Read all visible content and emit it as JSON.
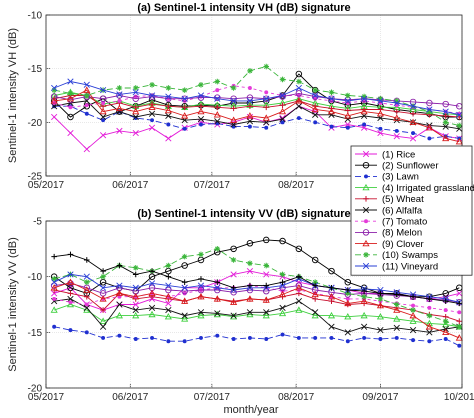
{
  "chart_data": [
    {
      "type": "line",
      "title": "(a) Sentinel-1 intensity VH (dB) signature",
      "ylabel": "Sentinel-1 intensity VH (dB)",
      "xlabel": "",
      "ylim": [
        -25,
        -10
      ],
      "yticks": [
        -25,
        -20,
        -15,
        -10
      ],
      "xlim": [
        "2017-05-01",
        "2017-10-01"
      ],
      "xticks": [
        "05/2017",
        "06/2017",
        "07/2017",
        "08/2017",
        "09/2017",
        "10/2017"
      ],
      "grid": true,
      "x": [
        "2017-05-04",
        "2017-05-10",
        "2017-05-16",
        "2017-05-22",
        "2017-05-28",
        "2017-06-03",
        "2017-06-09",
        "2017-06-15",
        "2017-06-21",
        "2017-06-27",
        "2017-07-03",
        "2017-07-09",
        "2017-07-15",
        "2017-07-21",
        "2017-07-27",
        "2017-08-02",
        "2017-08-08",
        "2017-08-14",
        "2017-08-20",
        "2017-08-26",
        "2017-09-01",
        "2017-09-07",
        "2017-09-13",
        "2017-09-19",
        "2017-09-25",
        "2017-09-30"
      ],
      "series": [
        {
          "name": "(1) Rice",
          "color": "#e31ad8",
          "marker": "x",
          "dash": "",
          "values": [
            -19.5,
            -21,
            -22.5,
            -21.2,
            -20.8,
            -21,
            -20.5,
            -21.5,
            -20.5,
            -20,
            -20.2,
            -20,
            -19.5,
            -20,
            -19.6,
            -18.5,
            -19,
            -20.5,
            -20.2,
            -20.5,
            -21,
            -21.3,
            -21.5,
            -20.5,
            -21.3,
            -21.5
          ]
        },
        {
          "name": "(2) Sunflower",
          "color": "#000000",
          "marker": "o",
          "dash": "",
          "values": [
            -18,
            -19.5,
            -18.5,
            -17.8,
            -19,
            -18.5,
            -17.9,
            -18.4,
            -18.5,
            -18.4,
            -18.5,
            -18.2,
            -18.2,
            -18,
            -17.5,
            -15.5,
            -17,
            -18,
            -18.4,
            -18.2,
            -18.5,
            -18.8,
            -19,
            -19.2,
            -19.5,
            -19.5
          ]
        },
        {
          "name": "(3) Lawn",
          "color": "#1f2fd0",
          "marker": "dot",
          "dash": "6,3",
          "values": [
            -18.5,
            -18.5,
            -19.2,
            -19.8,
            -19,
            -19.6,
            -19.8,
            -20.2,
            -20.6,
            -20.2,
            -20.1,
            -20.4,
            -20.4,
            -20.5,
            -20,
            -19.6,
            -20,
            -20.4,
            -20.5,
            -20.2,
            -20.6,
            -20.8,
            -21,
            -21.5,
            -21.3,
            -21.5
          ]
        },
        {
          "name": "(4) Irrigated grassland",
          "color": "#3ecf3e",
          "marker": "tri",
          "dash": "",
          "values": [
            -17.5,
            -17.2,
            -17.5,
            -18.3,
            -18,
            -18.5,
            -18.2,
            -18.5,
            -18.6,
            -18.3,
            -18.4,
            -18.5,
            -18.4,
            -18.4,
            -18.2,
            -17.8,
            -18.2,
            -18.5,
            -18.7,
            -18.5,
            -18.6,
            -18.6,
            -18.8,
            -19,
            -19.2,
            -19.3
          ]
        },
        {
          "name": "(5) Wheat",
          "color": "#c8102e",
          "marker": "plus",
          "dash": "",
          "values": [
            -17.8,
            -17.5,
            -17.5,
            -18.5,
            -18.2,
            -18.6,
            -18.3,
            -18.5,
            -18.6,
            -18.5,
            -18.6,
            -18.7,
            -18.5,
            -18.6,
            -18.4,
            -18,
            -18.5,
            -18.7,
            -18.9,
            -18.8,
            -18.8,
            -19,
            -19.2,
            -19.3,
            -19.4,
            -19.5
          ]
        },
        {
          "name": "(6) Alfalfa",
          "color": "#111111",
          "marker": "x",
          "dash": "",
          "values": [
            -18.5,
            -18.2,
            -18,
            -19.5,
            -19,
            -19.5,
            -19.2,
            -19.4,
            -19.8,
            -19.7,
            -19.9,
            -20.2,
            -19.9,
            -20,
            -19.7,
            -18.5,
            -19.3,
            -19.3,
            -19.7,
            -19.4,
            -19.6,
            -19.8,
            -20,
            -20.3,
            -20.4,
            -20.6
          ]
        },
        {
          "name": "(7) Tomato",
          "color": "#e53bd9",
          "marker": "dot",
          "dash": "3,3",
          "values": [
            -18.2,
            -18.6,
            -18.4,
            -18.2,
            -18,
            -17.6,
            -17.5,
            -17.8,
            -18,
            -17.6,
            -17,
            -16.6,
            -16.8,
            -17.2,
            -17.5,
            -17.5,
            -17.8,
            -18,
            -18.2,
            -18,
            -18.2,
            -18.4,
            -18.6,
            -18.8,
            -19,
            -19.2
          ]
        },
        {
          "name": "(8) Melon",
          "color": "#8b1fa9",
          "marker": "o",
          "dash": "",
          "values": [
            -17.6,
            -17.9,
            -17.6,
            -17.8,
            -17.5,
            -17.8,
            -17.6,
            -17.8,
            -17.8,
            -17.7,
            -17.7,
            -17.8,
            -17.7,
            -17.8,
            -17.6,
            -17.3,
            -17.6,
            -17.8,
            -17.9,
            -17.8,
            -17.9,
            -18,
            -18.1,
            -18.2,
            -18.3,
            -18.5
          ]
        },
        {
          "name": "(9) Clover",
          "color": "#d81b1b",
          "marker": "tri",
          "dash": "",
          "values": [
            -18,
            -17.8,
            -17,
            -19,
            -18.7,
            -19,
            -18.6,
            -18.9,
            -19.4,
            -19,
            -19.3,
            -19.8,
            -19.4,
            -19.6,
            -19,
            -18,
            -18.8,
            -19,
            -19.4,
            -19,
            -19.2,
            -19.6,
            -20,
            -20.5,
            -21.5,
            -21.8
          ]
        },
        {
          "name": "(10) Swamps",
          "color": "#3ab53a",
          "marker": "star",
          "dash": "6,3",
          "values": [
            -17,
            -17.3,
            -17.5,
            -17,
            -16.8,
            -16.8,
            -16.5,
            -16.8,
            -17,
            -16.5,
            -16.2,
            -16.8,
            -15.2,
            -14.8,
            -16,
            -16.2,
            -17,
            -17.2,
            -17.5,
            -17.6,
            -17.8,
            -18,
            -18.5,
            -19,
            -20,
            -20.3
          ]
        },
        {
          "name": "(11) Vineyard",
          "color": "#2a3fd6",
          "marker": "x",
          "dash": "",
          "values": [
            -16.8,
            -16.2,
            -16.5,
            -17,
            -17.4,
            -17.2,
            -17.5,
            -17.6,
            -17.8,
            -17.5,
            -17.8,
            -18,
            -18,
            -17.8,
            -17.5,
            -16.8,
            -17.5,
            -17.8,
            -18,
            -17.8,
            -18,
            -18.2,
            -18.5,
            -18.8,
            -19,
            -19.3
          ]
        }
      ]
    },
    {
      "type": "line",
      "title": "(b) Sentinel-1 intensity VV (dB) signature",
      "ylabel": "Sentinel-1 intensity VV (dB)",
      "xlabel": "month/year",
      "ylim": [
        -20,
        -5
      ],
      "yticks": [
        -20,
        -15,
        -10,
        -5
      ],
      "xlim": [
        "2017-05-01",
        "2017-10-01"
      ],
      "xticks": [
        "05/2017",
        "06/2017",
        "07/2017",
        "08/2017",
        "09/2017",
        "10/2017"
      ],
      "grid": true,
      "x": [
        "2017-05-04",
        "2017-05-10",
        "2017-05-16",
        "2017-05-22",
        "2017-05-28",
        "2017-06-03",
        "2017-06-09",
        "2017-06-15",
        "2017-06-21",
        "2017-06-27",
        "2017-07-03",
        "2017-07-09",
        "2017-07-15",
        "2017-07-21",
        "2017-07-27",
        "2017-08-02",
        "2017-08-08",
        "2017-08-14",
        "2017-08-20",
        "2017-08-26",
        "2017-09-01",
        "2017-09-07",
        "2017-09-13",
        "2017-09-19",
        "2017-09-25",
        "2017-09-30"
      ],
      "series": [
        {
          "name": "(1) Rice",
          "color": "#e31ad8",
          "marker": "x",
          "dash": "",
          "values": [
            -11.5,
            -11,
            -12.5,
            -13,
            -12.5,
            -12.5,
            -12,
            -12.4,
            -11,
            -11,
            -10.5,
            -9.8,
            -9.5,
            -9.8,
            -10,
            -10.5,
            -10.8,
            -11,
            -11.2,
            -11.5,
            -11.5,
            -11.5,
            -11.8,
            -12,
            -11.8,
            -11.5
          ]
        },
        {
          "name": "(2) Sunflower",
          "color": "#000000",
          "marker": "o",
          "dash": "",
          "values": [
            -10,
            -11,
            -11.5,
            -10.5,
            -11,
            -11.3,
            -10,
            -9.5,
            -9,
            -8.5,
            -7.8,
            -7.5,
            -7,
            -6.7,
            -6.8,
            -7.5,
            -8.5,
            -9.5,
            -10.5,
            -11,
            -11.5,
            -11.5,
            -11.8,
            -11.8,
            -11.5,
            -11
          ]
        },
        {
          "name": "(3) Lawn",
          "color": "#1f2fd0",
          "marker": "dot",
          "dash": "6,3",
          "values": [
            -14.5,
            -14.8,
            -15,
            -15.5,
            -15.3,
            -15.6,
            -15.5,
            -15.8,
            -15.8,
            -15.5,
            -15.3,
            -15.6,
            -15.5,
            -15.6,
            -15.2,
            -15.5,
            -15.5,
            -15.5,
            -15.8,
            -15.5,
            -15.6,
            -15.5,
            -15.7,
            -15.8,
            -15.6,
            -16.2
          ]
        },
        {
          "name": "(4) Irrigated grassland",
          "color": "#3ecf3e",
          "marker": "tri",
          "dash": "",
          "values": [
            -13,
            -12.5,
            -13,
            -14,
            -13.5,
            -13.5,
            -13.4,
            -13.6,
            -13.8,
            -13.5,
            -13.4,
            -13.6,
            -13.4,
            -13.5,
            -13.3,
            -13,
            -13.5,
            -13.5,
            -13.6,
            -13.5,
            -13.6,
            -13.8,
            -14,
            -14.2,
            -14.3,
            -14.5
          ]
        },
        {
          "name": "(5) Wheat",
          "color": "#c8102e",
          "marker": "plus",
          "dash": "",
          "values": [
            -11.2,
            -11.5,
            -11.8,
            -13,
            -11.5,
            -12,
            -11.8,
            -12,
            -12.2,
            -11.8,
            -12,
            -12.2,
            -12,
            -12.1,
            -11.8,
            -11.5,
            -12,
            -12.2,
            -12.5,
            -12.4,
            -12.6,
            -12.8,
            -13,
            -13.4,
            -13.6,
            -14
          ]
        },
        {
          "name": "(6) Alfalfa",
          "color": "#111111",
          "marker": "x",
          "dash": "",
          "values": [
            -12.2,
            -12,
            -12.8,
            -14.5,
            -12.5,
            -13,
            -12.8,
            -13,
            -13.5,
            -13.2,
            -13.3,
            -13.5,
            -13.2,
            -13.2,
            -12.8,
            -12.2,
            -13.2,
            -14.5,
            -15,
            -14.5,
            -14.8,
            -14.6,
            -14.8,
            -15,
            -14.7,
            -14.5
          ]
        },
        {
          "name": "(7) Tomato",
          "color": "#e53bd9",
          "marker": "dot",
          "dash": "3,3",
          "values": [
            -12,
            -12.3,
            -12.5,
            -12,
            -11.8,
            -11.8,
            -11.5,
            -11.8,
            -11.5,
            -11.2,
            -11,
            -11,
            -10.8,
            -11,
            -11.3,
            -11.2,
            -11.5,
            -11.8,
            -12,
            -12,
            -12.2,
            -12.4,
            -12.6,
            -12.8,
            -13,
            -13.2
          ]
        },
        {
          "name": "(8) Melon",
          "color": "#8b1fa9",
          "marker": "o",
          "dash": "",
          "values": [
            -10.8,
            -10.6,
            -11,
            -11.5,
            -11,
            -11.3,
            -11,
            -11.2,
            -11.3,
            -11.2,
            -11.2,
            -11.4,
            -11.2,
            -11.3,
            -11,
            -10.8,
            -11.2,
            -11.4,
            -11.6,
            -11.5,
            -11.6,
            -11.7,
            -11.8,
            -12,
            -12.1,
            -12.3
          ]
        },
        {
          "name": "(9) Clover",
          "color": "#d81b1b",
          "marker": "tri",
          "dash": "",
          "values": [
            -11,
            -10.5,
            -11.2,
            -12,
            -11.5,
            -11.8,
            -11.5,
            -11.8,
            -12.2,
            -11.8,
            -12,
            -12.3,
            -12,
            -12.1,
            -11.6,
            -11,
            -11.6,
            -11.8,
            -12.4,
            -12.2,
            -12.6,
            -13,
            -13.5,
            -14.5,
            -15,
            -15.5
          ]
        },
        {
          "name": "(10) Swamps",
          "color": "#3ab53a",
          "marker": "star",
          "dash": "6,3",
          "values": [
            -10.2,
            -9.8,
            -10.5,
            -10,
            -9,
            -9.2,
            -9.5,
            -9,
            -8.2,
            -8,
            -7.5,
            -8.5,
            -8.8,
            -9,
            -9.8,
            -10,
            -10.5,
            -11,
            -11.5,
            -11.8,
            -12,
            -12.5,
            -13,
            -13.5,
            -14,
            -14.5
          ]
        },
        {
          "name": "(11) Vineyard",
          "color": "#2a3fd6",
          "marker": "x",
          "dash": "",
          "values": [
            -10.5,
            -9.8,
            -10,
            -11,
            -10.8,
            -11,
            -10.6,
            -10.8,
            -11,
            -10.8,
            -11,
            -11.2,
            -11,
            -11,
            -10.8,
            -10.2,
            -10.8,
            -11,
            -11.2,
            -11.1,
            -11.2,
            -11.4,
            -11.6,
            -11.8,
            -12,
            -12.3
          ]
        },
        {
          "name": "",
          "color": "#000000",
          "marker": "plus",
          "dash": "",
          "values": [
            -8.2,
            -8,
            -8.5,
            -9.5,
            -9,
            -9.8,
            -9.5,
            -10,
            -10.5,
            -10.2,
            -10.5,
            -11,
            -10.8,
            -10.8,
            -10.5,
            -10,
            -10.8,
            -11,
            -11.2,
            -11.3,
            -11.5,
            -11.6,
            -11.8,
            -12,
            -12.2,
            -12.4
          ]
        }
      ]
    }
  ],
  "legend": {
    "placement": "right",
    "entries": [
      {
        "label": "(1) Rice",
        "color": "#e31ad8",
        "marker": "x",
        "dash": ""
      },
      {
        "label": "(2) Sunflower",
        "color": "#000000",
        "marker": "o",
        "dash": ""
      },
      {
        "label": "(3) Lawn",
        "color": "#1f2fd0",
        "marker": "dot",
        "dash": "6,3"
      },
      {
        "label": "(4) Irrigated grassland",
        "color": "#3ecf3e",
        "marker": "tri",
        "dash": ""
      },
      {
        "label": "(5) Wheat",
        "color": "#c8102e",
        "marker": "plus",
        "dash": ""
      },
      {
        "label": "(6) Alfalfa",
        "color": "#111111",
        "marker": "x",
        "dash": ""
      },
      {
        "label": "(7) Tomato",
        "color": "#e53bd9",
        "marker": "dot",
        "dash": "3,3"
      },
      {
        "label": "(8) Melon",
        "color": "#8b1fa9",
        "marker": "o",
        "dash": ""
      },
      {
        "label": "(9) Clover",
        "color": "#d81b1b",
        "marker": "tri",
        "dash": ""
      },
      {
        "label": "(10) Swamps",
        "color": "#3ab53a",
        "marker": "star",
        "dash": "6,3"
      },
      {
        "label": "(11) Vineyard",
        "color": "#2a3fd6",
        "marker": "x",
        "dash": ""
      }
    ]
  }
}
